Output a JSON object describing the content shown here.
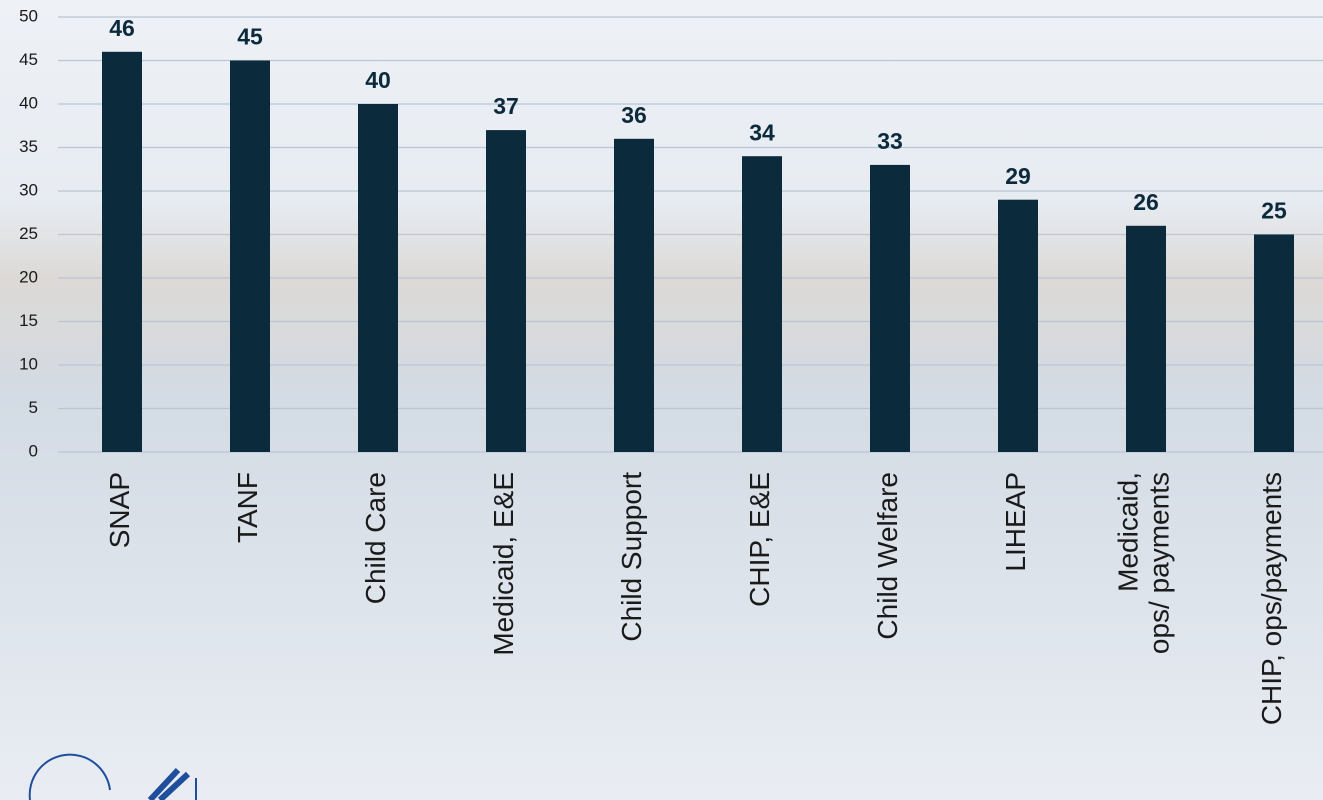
{
  "chart_data": {
    "type": "bar",
    "categories": [
      "SNAP",
      "TANF",
      "Child Care",
      "Medicaid, E&E",
      "Child Support",
      "CHIP, E&E",
      "Child Welfare",
      "LIHEAP",
      "Medicaid,\nops/ payments",
      "CHIP, ops/payments"
    ],
    "values": [
      46,
      45,
      40,
      37,
      36,
      34,
      33,
      29,
      26,
      25
    ],
    "color": "#0b2a3c",
    "ylim": [
      0,
      50
    ],
    "yticks": [
      0,
      5,
      10,
      15,
      20,
      25,
      30,
      35,
      40,
      45,
      50
    ],
    "grid": true
  }
}
